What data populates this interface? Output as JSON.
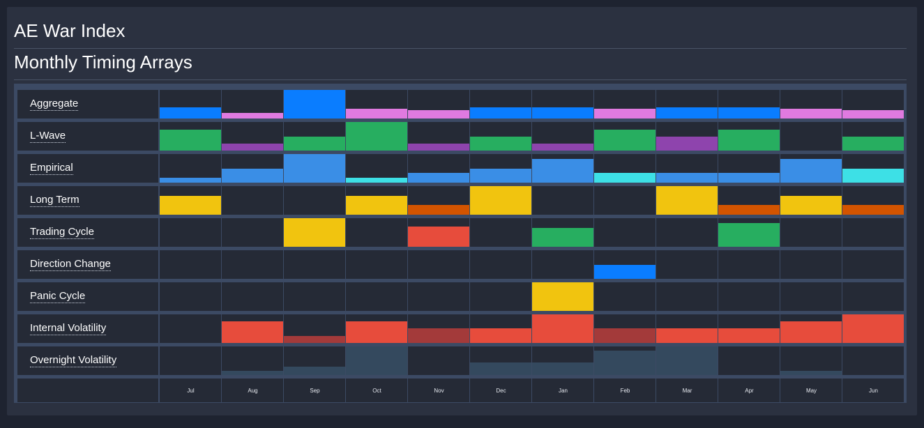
{
  "header": {
    "title": "AE War Index",
    "subtitle": "Monthly Timing Arrays"
  },
  "colors": {
    "background": "#1e2330",
    "panel": "#2b3140",
    "cell": "#252a36",
    "grid": "#3c4a64",
    "blue": "#0a7dff",
    "pink": "#e07ae0",
    "green": "#27ae60",
    "purple": "#8e44ad",
    "empirical_blue": "#3a8ee6",
    "cyan": "#3de0e6",
    "yellow": "#f1c40f",
    "orange": "#d35400",
    "red": "#e74c3c",
    "dark_red": "#a33a3a",
    "slate": "#34495e"
  },
  "chart_data": {
    "type": "heatmap",
    "categories": [
      "Jul",
      "Aug",
      "Sep",
      "Oct",
      "Nov",
      "Dec",
      "Jan",
      "Feb",
      "Mar",
      "Apr",
      "May",
      "Jun"
    ],
    "rows": [
      {
        "name": "Aggregate",
        "levels": [
          0.4,
          0.2,
          1.0,
          0.35,
          0.3,
          0.4,
          0.4,
          0.35,
          0.4,
          0.4,
          0.35,
          0.3
        ],
        "colors": [
          "#0a7dff",
          "#e07ae0",
          "#0a7dff",
          "#e07ae0",
          "#e07ae0",
          "#0a7dff",
          "#0a7dff",
          "#e07ae0",
          "#0a7dff",
          "#0a7dff",
          "#e07ae0",
          "#e07ae0"
        ]
      },
      {
        "name": "L-Wave",
        "levels": [
          0.73,
          0.25,
          0.49,
          1.0,
          0.25,
          0.49,
          0.25,
          0.73,
          0.49,
          0.73,
          0.0,
          0.49
        ],
        "colors": [
          "#27ae60",
          "#8e44ad",
          "#27ae60",
          "#27ae60",
          "#8e44ad",
          "#27ae60",
          "#8e44ad",
          "#27ae60",
          "#8e44ad",
          "#27ae60",
          "#27ae60",
          "#27ae60"
        ]
      },
      {
        "name": "Empirical",
        "levels": [
          0.17,
          0.49,
          1.0,
          0.17,
          0.34,
          0.49,
          0.83,
          0.34,
          0.34,
          0.34,
          0.83,
          0.49
        ],
        "colors": [
          "#3a8ee6",
          "#3a8ee6",
          "#3a8ee6",
          "#3de0e6",
          "#3a8ee6",
          "#3a8ee6",
          "#3a8ee6",
          "#3de0e6",
          "#3a8ee6",
          "#3a8ee6",
          "#3a8ee6",
          "#3de0e6"
        ]
      },
      {
        "name": "Long Term",
        "levels": [
          0.66,
          0.0,
          0.0,
          0.66,
          0.34,
          1.0,
          0.0,
          0.0,
          1.0,
          0.34,
          0.66,
          0.34
        ],
        "colors": [
          "#f1c40f",
          "#f1c40f",
          "#f1c40f",
          "#f1c40f",
          "#d35400",
          "#f1c40f",
          "#f1c40f",
          "#f1c40f",
          "#f1c40f",
          "#d35400",
          "#f1c40f",
          "#d35400"
        ]
      },
      {
        "name": "Trading Cycle",
        "levels": [
          0.0,
          0.0,
          1.0,
          0.0,
          0.71,
          0.0,
          0.66,
          0.0,
          0.0,
          0.83,
          0.0,
          0.0
        ],
        "colors": [
          "#f1c40f",
          "#f1c40f",
          "#f1c40f",
          "#f1c40f",
          "#e74c3c",
          "#f1c40f",
          "#27ae60",
          "#f1c40f",
          "#f1c40f",
          "#27ae60",
          "#f1c40f",
          "#f1c40f"
        ]
      },
      {
        "name": "Direction Change",
        "levels": [
          0,
          0,
          0,
          0,
          0,
          0,
          0,
          0.49,
          0,
          0,
          0,
          0
        ],
        "colors": [
          "#0a7dff",
          "#0a7dff",
          "#0a7dff",
          "#0a7dff",
          "#0a7dff",
          "#0a7dff",
          "#0a7dff",
          "#0a7dff",
          "#0a7dff",
          "#0a7dff",
          "#0a7dff",
          "#0a7dff"
        ]
      },
      {
        "name": "Panic Cycle",
        "levels": [
          0,
          0,
          0,
          0,
          0,
          0,
          1.0,
          0,
          0,
          0,
          0,
          0
        ],
        "colors": [
          "#f1c40f",
          "#f1c40f",
          "#f1c40f",
          "#f1c40f",
          "#f1c40f",
          "#f1c40f",
          "#f1c40f",
          "#f1c40f",
          "#f1c40f",
          "#f1c40f",
          "#f1c40f",
          "#f1c40f"
        ]
      },
      {
        "name": "Internal Volatility",
        "levels": [
          0.0,
          0.76,
          0.24,
          0.76,
          0.5,
          0.5,
          1.0,
          0.5,
          0.5,
          0.5,
          0.76,
          1.0
        ],
        "colors": [
          "#e74c3c",
          "#e74c3c",
          "#a33a3a",
          "#e74c3c",
          "#a33a3a",
          "#e74c3c",
          "#e74c3c",
          "#a33a3a",
          "#e74c3c",
          "#e74c3c",
          "#e74c3c",
          "#e74c3c"
        ]
      },
      {
        "name": "Overnight Volatility",
        "levels": [
          0.0,
          0.15,
          0.29,
          1.0,
          0.0,
          0.44,
          0.44,
          0.85,
          1.0,
          0.0,
          0.15,
          0.0
        ],
        "colors": [
          "#34495e",
          "#34495e",
          "#34495e",
          "#34495e",
          "#34495e",
          "#34495e",
          "#34495e",
          "#34495e",
          "#34495e",
          "#34495e",
          "#34495e",
          "#34495e"
        ]
      }
    ]
  }
}
